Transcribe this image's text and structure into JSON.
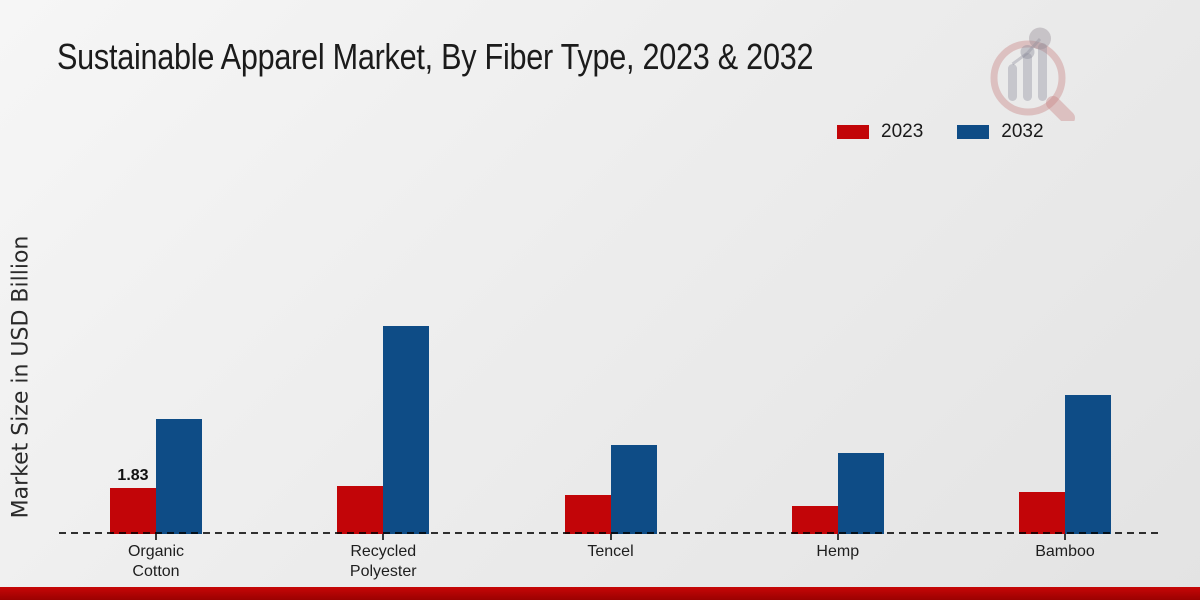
{
  "chart_data": {
    "type": "bar",
    "title": "Sustainable Apparel Market, By Fiber Type, 2023 & 2032",
    "ylabel": "Market Size in USD Billion",
    "categories": [
      "Organic Cotton",
      "Recycled Polyester",
      "Tencel",
      "Hemp",
      "Bamboo"
    ],
    "series": [
      {
        "name": "2023",
        "color": "#c20508",
        "values": [
          1.83,
          1.91,
          1.55,
          1.12,
          1.67
        ]
      },
      {
        "name": "2032",
        "color": "#0e4c86",
        "values": [
          4.57,
          8.27,
          3.54,
          3.22,
          5.53
        ]
      }
    ],
    "ylim": [
      0,
      10
    ],
    "grid": false,
    "legend_position": "top-right",
    "x_axis_style": "dashed",
    "data_labels": [
      {
        "series": "2023",
        "category": "Organic Cotton",
        "text": "1.83"
      }
    ]
  },
  "icons": {
    "watermark": "magnifier-bar-chart-logo"
  },
  "footer": {
    "accent_top": "#c70707",
    "accent_bottom": "#9a0101"
  }
}
